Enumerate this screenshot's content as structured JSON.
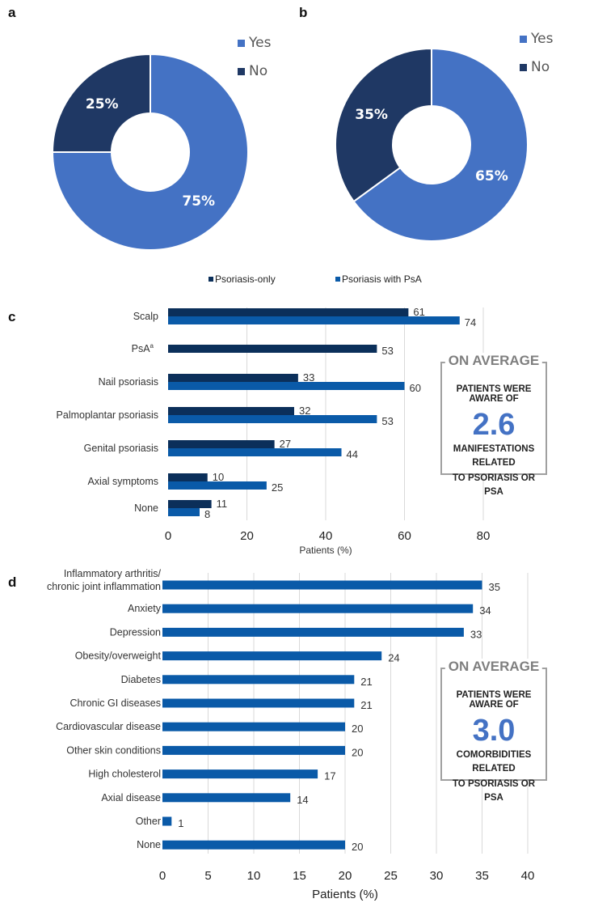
{
  "panels": {
    "a": "a",
    "b": "b",
    "c": "c",
    "d": "d"
  },
  "colors": {
    "yes": "#4472c4",
    "no": "#1f3864",
    "psoriasis_only": "#0b2f5a",
    "psoriasis_with_psa": "#0a5aa8",
    "single_bar": "#0a5aa8",
    "grid": "#d9d9d9",
    "callout_number": "#4472c4"
  },
  "callouts": {
    "c": {
      "heading": "ON AVERAGE",
      "line1": "PATIENTS WERE AWARE OF",
      "value": "2.6",
      "line2a": "MANIFESTATIONS RELATED",
      "line2b": "TO PSORIASIS OR PSA"
    },
    "d": {
      "heading": "ON AVERAGE",
      "line1": "PATIENTS WERE AWARE OF",
      "value": "3.0",
      "line2a": "COMORBIDITIES RELATED",
      "line2b": "TO PSORIASIS OR PSA"
    }
  },
  "chart_data": [
    {
      "id": "a",
      "type": "pie",
      "donut": true,
      "categories": [
        "Yes",
        "No"
      ],
      "values": [
        75,
        25
      ],
      "labels": [
        "75%",
        "25%"
      ],
      "legend": [
        "Yes",
        "No"
      ],
      "legend_position": "top-right"
    },
    {
      "id": "b",
      "type": "pie",
      "donut": true,
      "categories": [
        "Yes",
        "No"
      ],
      "values": [
        65,
        35
      ],
      "labels": [
        "65%",
        "35%"
      ],
      "legend": [
        "Yes",
        "No"
      ],
      "legend_position": "top-right"
    },
    {
      "id": "c",
      "type": "bar",
      "orientation": "horizontal",
      "categories": [
        "Scalp",
        "PsA",
        "Nail psoriasis",
        "Palmoplantar psoriasis",
        "Genital psoriasis",
        "Axial symptoms",
        "None"
      ],
      "category_superscripts": [
        "",
        "a",
        "",
        "",
        "",
        "",
        ""
      ],
      "series": [
        {
          "name": "Psoriasis-only",
          "values": [
            61,
            53,
            33,
            32,
            27,
            10,
            11
          ]
        },
        {
          "name": "Psoriasis with PsA",
          "values": [
            74,
            null,
            60,
            53,
            44,
            25,
            8
          ]
        }
      ],
      "xlabel": "Patients (%)",
      "xlim": [
        0,
        80
      ],
      "xticks": [
        0,
        20,
        40,
        60,
        80
      ],
      "grid": true,
      "legend_position": "top"
    },
    {
      "id": "d",
      "type": "bar",
      "orientation": "horizontal",
      "categories": [
        "Inflammatory arthritis/\nchronic joint inflammation",
        "Anxiety",
        "Depression",
        "Obesity/overweight",
        "Diabetes",
        "Chronic GI diseases",
        "Cardiovascular disease",
        "Other skin conditions",
        "High cholesterol",
        "Axial disease",
        "Other",
        "None"
      ],
      "values": [
        35,
        34,
        33,
        24,
        21,
        21,
        20,
        20,
        17,
        14,
        1,
        20
      ],
      "xlabel": "Patients (%)",
      "xlim": [
        0,
        40
      ],
      "xticks": [
        0,
        5,
        10,
        15,
        20,
        25,
        30,
        35,
        40
      ],
      "grid": true
    }
  ]
}
